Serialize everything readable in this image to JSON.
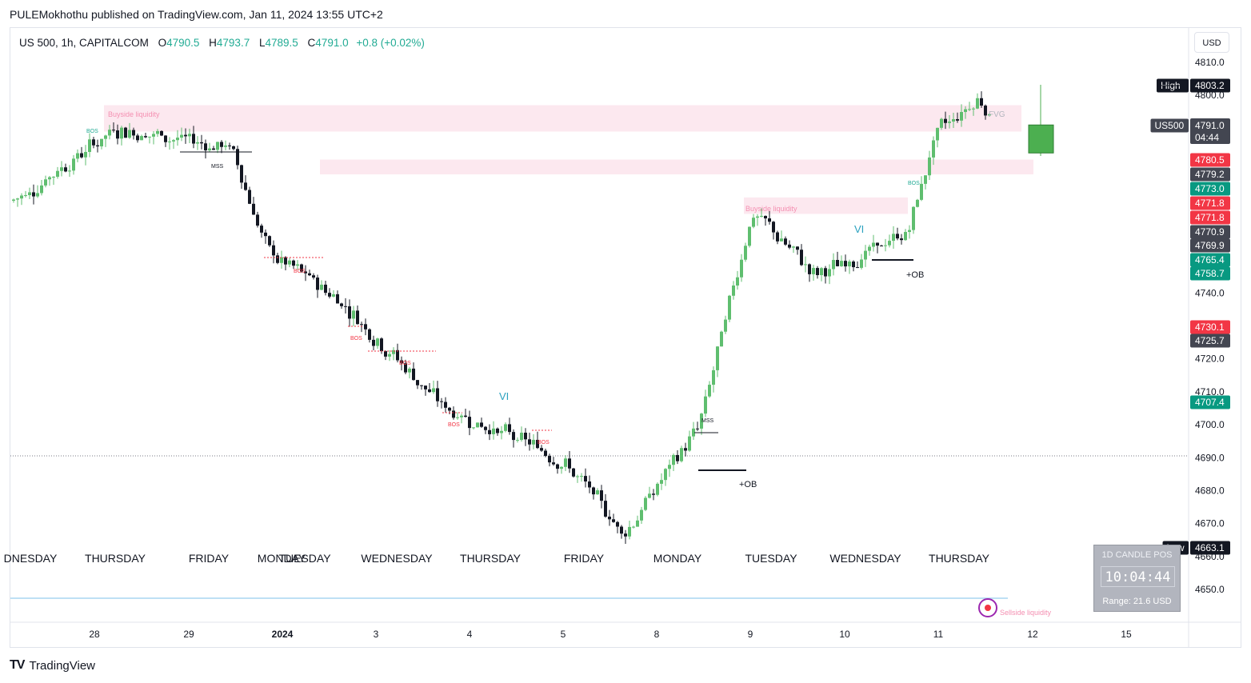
{
  "header": {
    "published": "PULEMokhothu published on TradingView.com, Jan 11, 2024 13:55 UTC+2"
  },
  "legend": {
    "symbol": "US 500, 1h, CAPITALCOM",
    "o_label": "O",
    "o_value": "4790.5",
    "h_label": "H",
    "h_value": "4793.7",
    "l_label": "L",
    "l_value": "4789.5",
    "c_label": "C",
    "c_value": "4791.0",
    "change": "+0.8 (+0.02%)"
  },
  "currency_button": "USD",
  "footer": {
    "logo": "TV",
    "brand": "TradingView"
  },
  "colors": {
    "up": "#5fbe6f",
    "down": "#131722",
    "zone": "#fce4ec",
    "red_badge": "#f23645",
    "green_badge": "#089981",
    "grey_badge": "#434651"
  },
  "countdown": {
    "title": "1D CANDLE POS",
    "time": "10:04:44",
    "range": "Range: 21.6 USD"
  },
  "chart_data": {
    "type": "candlestick",
    "title": "US 500, 1h, CAPITALCOM",
    "ylim": [
      4641,
      4818
    ],
    "y_ticks": [
      "4810.0",
      "4800.0",
      "4740.0",
      "4720.0",
      "4710.0",
      "4700.0",
      "4690.0",
      "4680.0",
      "4670.0",
      "4660.0",
      "4650.0"
    ],
    "x_labels": [
      "28",
      "29",
      "2024",
      "3",
      "4",
      "5",
      "8",
      "9",
      "10",
      "11",
      "12",
      "15"
    ],
    "day_labels": [
      "DNESDAY",
      "THURSDAY",
      "FRIDAY",
      "MONDAY",
      "TUESDAY",
      "WEDNESDAY",
      "THURSDAY",
      "FRIDAY",
      "MONDAY",
      "TUESDAY",
      "WEDNESDAY",
      "THURSDAY"
    ],
    "price_badges": [
      {
        "text": "High",
        "value": "4803.2",
        "price": 4803.2,
        "color": "#131722",
        "label_box": true
      },
      {
        "text": "US500",
        "value": "4791.0",
        "sub": "04:44",
        "price": 4791.0,
        "color": "#434651",
        "label_box": true
      },
      {
        "value": "4780.5",
        "price": 4780.5,
        "color": "#f23645"
      },
      {
        "value": "4779.2",
        "price": 4779.2,
        "color": "#434651"
      },
      {
        "value": "4773.0",
        "price": 4773.0,
        "color": "#089981"
      },
      {
        "value": "4771.8",
        "price": 4771.8,
        "color": "#f23645"
      },
      {
        "value": "4771.8",
        "price": 4771.8,
        "color": "#f23645",
        "stack": 1
      },
      {
        "value": "4770.9",
        "price": 4770.9,
        "color": "#434651",
        "stack": 2
      },
      {
        "value": "4769.9",
        "price": 4769.9,
        "color": "#434651",
        "stack": 3
      },
      {
        "value": "4765.4",
        "price": 4765.4,
        "color": "#089981",
        "stack": 4
      },
      {
        "value": "4758.7",
        "price": 4758.7,
        "color": "#089981",
        "stack": 5
      },
      {
        "value": "4730.1",
        "price": 4730.1,
        "color": "#f23645"
      },
      {
        "value": "4725.7",
        "price": 4725.7,
        "color": "#434651"
      },
      {
        "value": "4707.4",
        "price": 4707.4,
        "color": "#089981"
      },
      {
        "text": "Low",
        "value": "4663.1",
        "price": 4663.1,
        "color": "#131722",
        "label_box": true
      }
    ],
    "annotations": [
      {
        "text": "BOS",
        "kind": "bos_up"
      },
      {
        "text": "MSS",
        "kind": "mss"
      },
      {
        "text": "BOS",
        "kind": "bos_down"
      },
      {
        "text": "BOS",
        "kind": "bos_down"
      },
      {
        "text": "BOS",
        "kind": "bos_down"
      },
      {
        "text": "BOS",
        "kind": "bos_down"
      },
      {
        "text": "BOS",
        "kind": "bos_down"
      },
      {
        "text": "VI",
        "kind": "vi"
      },
      {
        "text": "MSS",
        "kind": "mss"
      },
      {
        "text": "+OB",
        "kind": "ob"
      },
      {
        "text": "Buyside liquidity",
        "kind": "liq"
      },
      {
        "text": "Buyside liquidity",
        "kind": "liq"
      },
      {
        "text": "VI",
        "kind": "vi"
      },
      {
        "text": "BOS",
        "kind": "bos_up"
      },
      {
        "text": "+OB",
        "kind": "ob"
      },
      {
        "text": "FVG",
        "kind": "fvg"
      },
      {
        "text": "Sellside liquidity",
        "kind": "liq"
      }
    ],
    "key_points": [
      {
        "x": "Dec 27",
        "y": 4768
      },
      {
        "x": "Dec 28",
        "y": 4790
      },
      {
        "x": "Dec 29",
        "y": 4784
      },
      {
        "x": "Jan 2",
        "y": 4752
      },
      {
        "x": "Jan 3",
        "y": 4738
      },
      {
        "x": "Jan 4",
        "y": 4705
      },
      {
        "x": "Jan 5",
        "y": 4690
      },
      {
        "x": "Jan 5",
        "y": 4667
      },
      {
        "x": "Jan 8",
        "y": 4700
      },
      {
        "x": "Jan 9",
        "y": 4765
      },
      {
        "x": "Jan 10",
        "y": 4745
      },
      {
        "x": "Jan 10",
        "y": 4758
      },
      {
        "x": "Jan 11",
        "y": 4789
      },
      {
        "x": "Jan 11",
        "y": 4800
      },
      {
        "x": "Jan 11",
        "y": 4790
      }
    ]
  }
}
